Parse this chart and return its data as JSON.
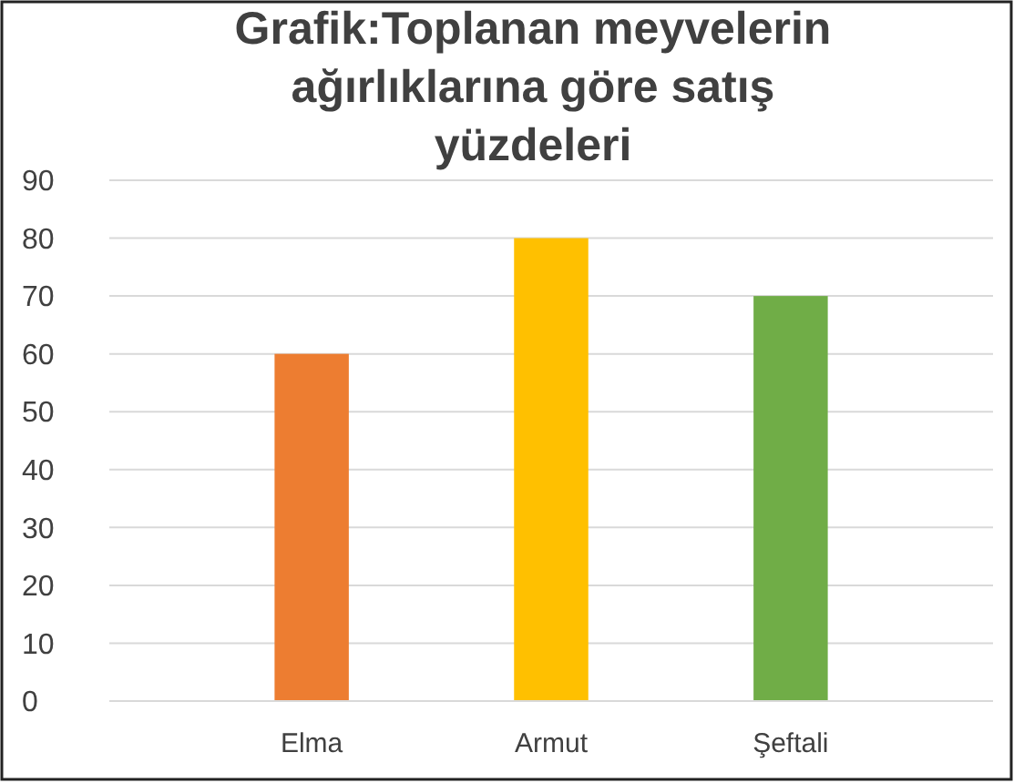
{
  "chart_data": {
    "type": "bar",
    "title": "Grafik:Toplanan meyvelerin ağırlıklarına göre satış yüzdeleri",
    "categories": [
      "Elma",
      "Armut",
      "Şeftali"
    ],
    "values": [
      60,
      80,
      70
    ],
    "colors": [
      "#ed7d31",
      "#ffc000",
      "#70ad47"
    ],
    "ylim": [
      0,
      90
    ],
    "yticks": [
      0,
      10,
      20,
      30,
      40,
      50,
      60,
      70,
      80,
      90
    ],
    "grid": "y"
  }
}
